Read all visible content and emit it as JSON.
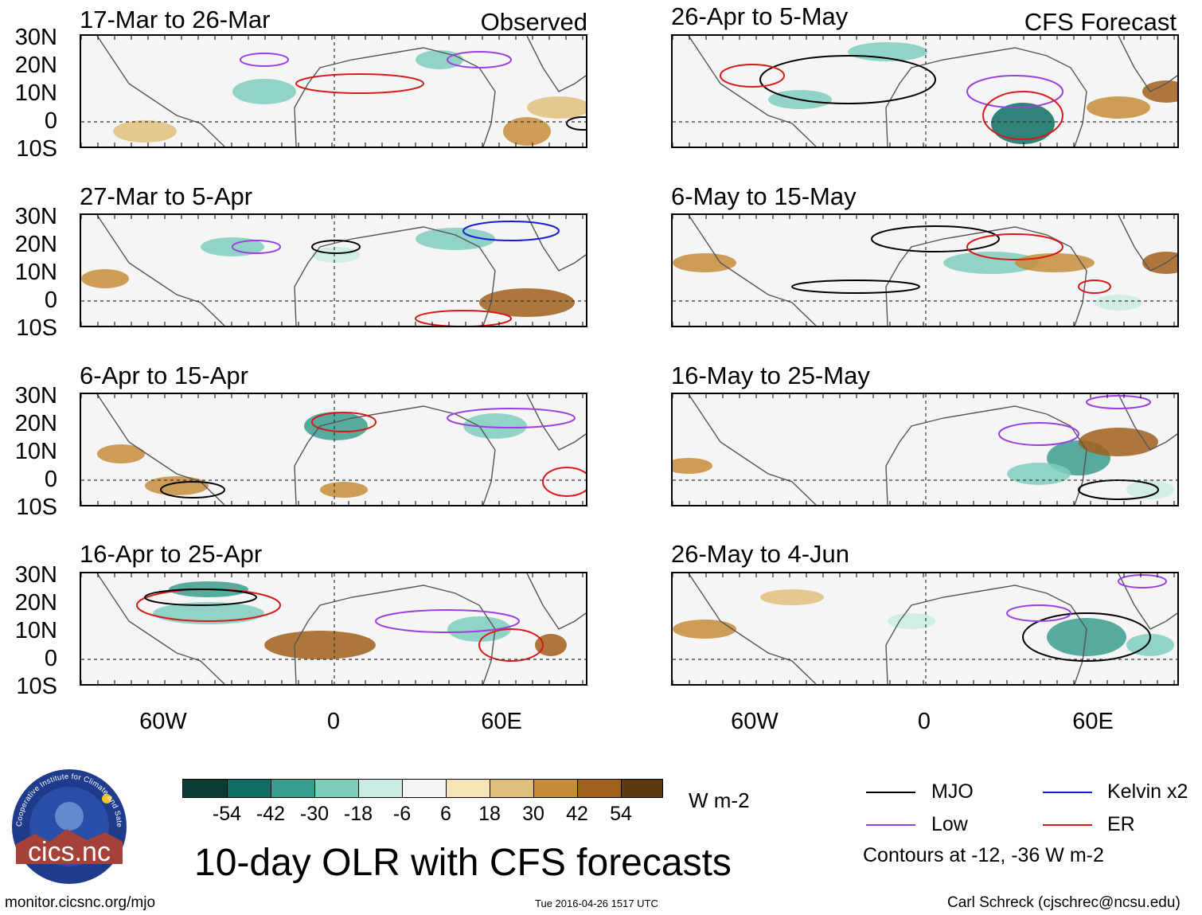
{
  "title": "10-day OLR with CFS forecasts",
  "headers": {
    "observed": "Observed",
    "forecast": "CFS Forecast"
  },
  "panels": {
    "left": [
      "17-Mar to 26-Mar",
      "27-Mar to 5-Apr",
      "6-Apr to 15-Apr",
      "16-Apr to 25-Apr"
    ],
    "right": [
      "26-Apr to 5-May",
      "6-May to 15-May",
      "16-May to 25-May",
      "26-May to 4-Jun"
    ]
  },
  "lat_labels": [
    "30N",
    "20N",
    "10N",
    "0",
    "10S"
  ],
  "lon_labels": [
    "60W",
    "0",
    "60E"
  ],
  "colorbar": {
    "labels": [
      "-54",
      "-42",
      "-30",
      "-18",
      "-6",
      "6",
      "18",
      "30",
      "42",
      "54"
    ],
    "colors": [
      "#0b3d36",
      "#0d6e61",
      "#3a9e8e",
      "#80cdbe",
      "#c9ebe3",
      "#f5f5f5",
      "#f6e5b8",
      "#e0c07c",
      "#c58c3a",
      "#a05f1b",
      "#5e3a10"
    ],
    "units": "W m-2"
  },
  "legend": {
    "items": [
      {
        "label": "MJO",
        "color": "#000000"
      },
      {
        "label": "Kelvin x2",
        "color": "#1a1ad6"
      },
      {
        "label": "Low",
        "color": "#9a3fe0"
      },
      {
        "label": "ER",
        "color": "#d61a1a"
      }
    ],
    "note": "Contours at -12, -36 W m-2"
  },
  "logo": {
    "text": "cics.nc",
    "ring_text": "Cooperative Institute for Climate and Satellites"
  },
  "footer": {
    "url": "monitor.cicsnc.org/mjo",
    "timestamp": "Tue 2016-04-26 1517 UTC",
    "credit": "Carl Schreck (cjschrec@ncsu.edu)"
  }
}
